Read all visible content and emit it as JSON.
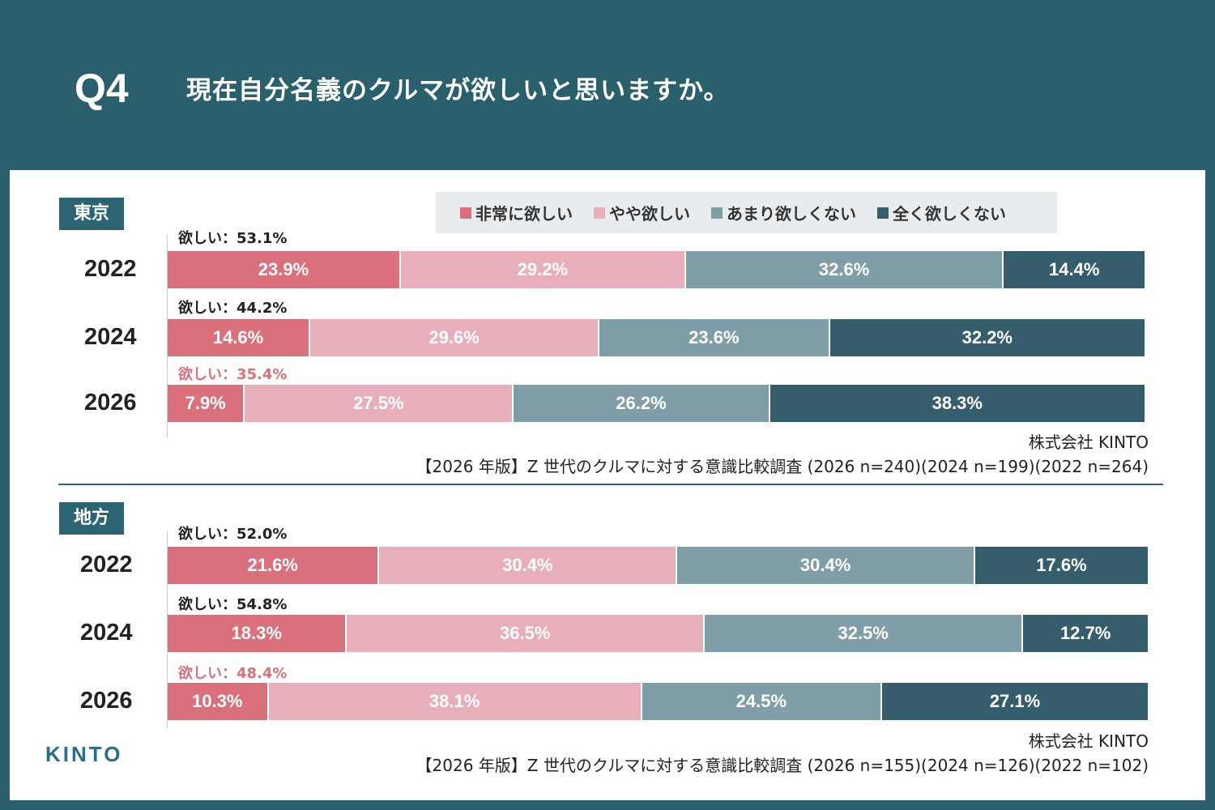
{
  "header": {
    "q_number": "Q4",
    "question": "現在自分名義のクルマが欲しいと思いますか。"
  },
  "legend": [
    {
      "label": "非常に欲しい",
      "color": "#d9707b"
    },
    {
      "label": "やや欲しい",
      "color": "#e8afbb"
    },
    {
      "label": "あまり欲しくない",
      "color": "#7f9ea7"
    },
    {
      "label": "全く欲しくない",
      "color": "#355d6b"
    }
  ],
  "logo": "KINTO",
  "chart_data": [
    {
      "type": "bar",
      "stacked": true,
      "orientation": "horizontal",
      "region": "東京",
      "categories": [
        "2022",
        "2024",
        "2026"
      ],
      "series": [
        {
          "name": "非常に欲しい",
          "values": [
            23.9,
            14.6,
            7.9
          ]
        },
        {
          "name": "やや欲しい",
          "values": [
            29.2,
            29.6,
            27.5
          ]
        },
        {
          "name": "あまり欲しくない",
          "values": [
            32.6,
            23.6,
            26.2
          ]
        },
        {
          "name": "全く欲しくない",
          "values": [
            14.4,
            32.2,
            38.3
          ]
        }
      ],
      "want_totals": [
        "欲しい：53.1%",
        "欲しい：44.2%",
        "欲しい：35.4%"
      ],
      "source_company": "株式会社 KINTO",
      "source_survey": "【2026 年版】Z 世代のクルマに対する意識比較調査 (2026 n=240)(2024 n=199)(2022 n=264)"
    },
    {
      "type": "bar",
      "stacked": true,
      "orientation": "horizontal",
      "region": "地方",
      "categories": [
        "2022",
        "2024",
        "2026"
      ],
      "series": [
        {
          "name": "非常に欲しい",
          "values": [
            21.6,
            18.3,
            10.3
          ]
        },
        {
          "name": "やや欲しい",
          "values": [
            30.4,
            36.5,
            38.1
          ]
        },
        {
          "name": "あまり欲しくない",
          "values": [
            30.4,
            32.5,
            24.5
          ]
        },
        {
          "name": "全く欲しくない",
          "values": [
            17.6,
            12.7,
            27.1
          ]
        }
      ],
      "want_totals": [
        "欲しい：52.0%",
        "欲しい：54.8%",
        "欲しい：48.4%"
      ],
      "source_company": "株式会社 KINTO",
      "source_survey": "【2026 年版】Z 世代のクルマに対する意識比較調査 (2026 n=155)(2024 n=126)(2022 n=102)"
    }
  ]
}
